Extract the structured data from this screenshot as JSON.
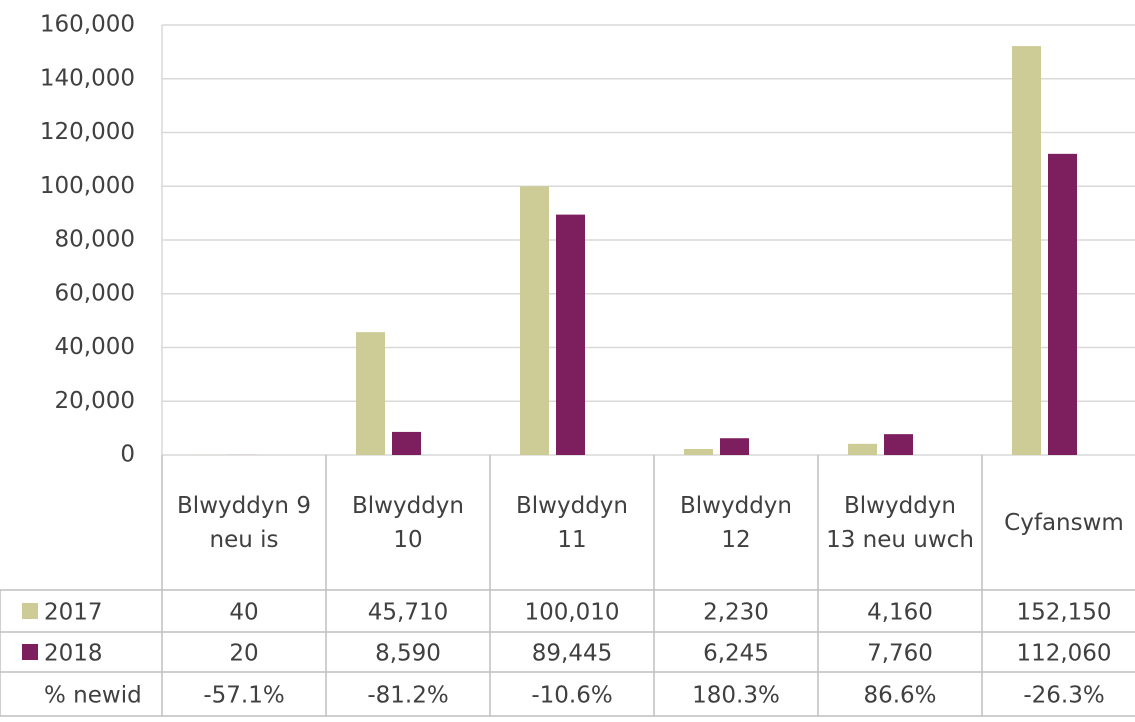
{
  "chart_data": {
    "type": "bar",
    "categories": [
      "Blwyddyn 9 neu is",
      "Blwyddyn 10",
      "Blwyddyn 11",
      "Blwyddyn 12",
      "Blwyddyn 13 neu uwch",
      "Cyfanswm"
    ],
    "series": [
      {
        "name": "2017",
        "color": "#cdcc97",
        "values": [
          40,
          45710,
          100010,
          2230,
          4160,
          152150
        ],
        "value_labels": [
          "40",
          "45,710",
          "100,010",
          "2,230",
          "4,160",
          "152,150"
        ]
      },
      {
        "name": "2018",
        "color": "#7d1f5e",
        "values": [
          20,
          8590,
          89445,
          6245,
          7760,
          112060
        ],
        "value_labels": [
          "20",
          "8,590",
          "89,445",
          "6,245",
          "7,760",
          "112,060"
        ]
      }
    ],
    "change": {
      "name": "% newid",
      "values": [
        -57.1,
        -81.2,
        -10.6,
        180.3,
        86.6,
        -26.3
      ],
      "value_labels": [
        "-57.1%",
        "-81.2%",
        "-10.6%",
        "180.3%",
        "86.6%",
        "-26.3%"
      ]
    },
    "ylim": [
      0,
      160000
    ],
    "yticks": [
      0,
      {
        "value": 20000,
        "label": "20,000"
      },
      {
        "value": 40000,
        "label": "40,000"
      },
      {
        "value": 60000,
        "label": "60,000"
      },
      {
        "value": 80000,
        "label": "80,000"
      },
      {
        "value": 100000,
        "label": "100,000"
      },
      {
        "value": 120000,
        "label": "120,000"
      },
      {
        "value": 140000,
        "label": "140,000"
      },
      {
        "value": 160000,
        "label": "160,000"
      }
    ],
    "grid": true
  }
}
